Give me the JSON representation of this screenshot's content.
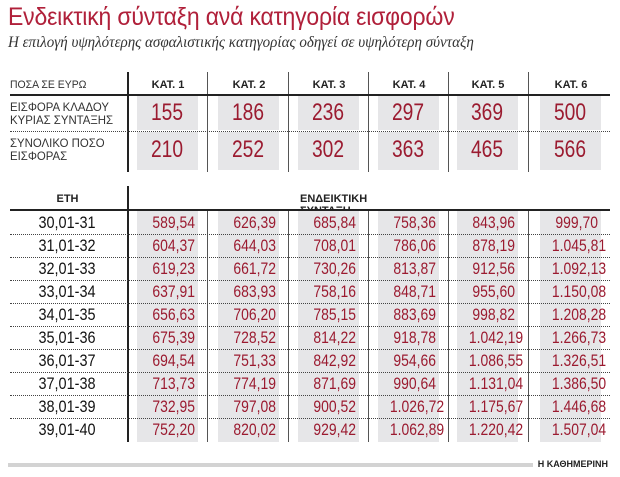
{
  "title": "Ενδεικτική σύνταξη ανά κατηγορία εισφορών",
  "subtitle": "Η επιλογή υψηλότερης ασφαλιστικής κατηγορίας οδηγεί σε υψηλότερη σύνταξη",
  "top_table": {
    "header_label": "ΠΟΣΑ ΣΕ ΕΥΡΩ",
    "columns": [
      "ΚΑΤ. 1",
      "ΚΑΤ. 2",
      "ΚΑΤ. 3",
      "ΚΑΤ. 4",
      "ΚΑΤ. 5",
      "ΚΑΤ. 6"
    ],
    "rows": [
      {
        "label_line1": "ΕΙΣΦΟΡΑ ΚΛΑΔΟΥ",
        "label_line2": "ΚΥΡΙΑΣ ΣΥΝΤΑΞΗΣ",
        "values": [
          "155",
          "186",
          "236",
          "297",
          "369",
          "500"
        ]
      },
      {
        "label_line1": "ΣΥΝΟΛΙΚΟ ΠΟΣΟ",
        "label_line2": "ΕΙΣΦΟΡΑΣ",
        "values": [
          "210",
          "252",
          "302",
          "363",
          "465",
          "566"
        ]
      }
    ]
  },
  "bottom_table": {
    "header_years": "ΕΤΗ",
    "header_values": "ΕΝΔΕΙΚΤΙΚΗ ΣΥΝΤΑΞΗ",
    "rows": [
      {
        "years": "30,01-31",
        "values": [
          "589,54",
          "626,39",
          "685,84",
          "758,36",
          "843,96",
          "999,70"
        ]
      },
      {
        "years": "31,01-32",
        "values": [
          "604,37",
          "644,03",
          "708,01",
          "786,06",
          "878,19",
          "1.045,81"
        ]
      },
      {
        "years": "32,01-33",
        "values": [
          "619,23",
          "661,72",
          "730,26",
          "813,87",
          "912,56",
          "1.092,13"
        ]
      },
      {
        "years": "33,01-34",
        "values": [
          "637,91",
          "683,93",
          "758,16",
          "848,71",
          "955,60",
          "1.150,08"
        ]
      },
      {
        "years": "34,01-35",
        "values": [
          "656,63",
          "706,20",
          "785,15",
          "883,69",
          "998,82",
          "1.208,28"
        ]
      },
      {
        "years": "35,01-36",
        "values": [
          "675,39",
          "728,52",
          "814,22",
          "918,78",
          "1.042,19",
          "1.266,73"
        ]
      },
      {
        "years": "36,01-37",
        "values": [
          "694,54",
          "751,33",
          "842,92",
          "954,66",
          "1.086,55",
          "1.326,51"
        ]
      },
      {
        "years": "37,01-38",
        "values": [
          "713,73",
          "774,19",
          "871,69",
          "990,64",
          "1.131,04",
          "1.386,50"
        ]
      },
      {
        "years": "38,01-39",
        "values": [
          "732,95",
          "797,08",
          "900,52",
          "1.026,72",
          "1.175,67",
          "1.446,68"
        ]
      },
      {
        "years": "39,01-40",
        "values": [
          "752,20",
          "820,02",
          "929,42",
          "1.062,89",
          "1.220,42",
          "1.507,04"
        ]
      }
    ]
  },
  "footer": "Η ΚΑΘΗΜΕΡΙΝΗ",
  "colors": {
    "accent": "#b0203a",
    "value": "#9b1b30",
    "cell_bg": "#e6e6e8"
  }
}
